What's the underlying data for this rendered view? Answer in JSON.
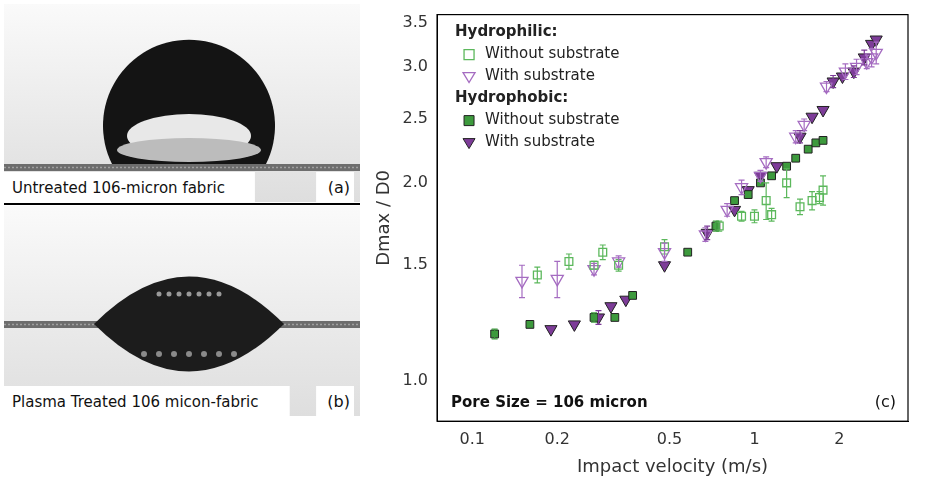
{
  "panels": [
    {
      "label": "(a)",
      "caption": "Untreated 106-micron fabric"
    },
    {
      "label": "(b)",
      "caption": "Plasma Treated 106 micon-fabric"
    }
  ],
  "chart_data": {
    "type": "scatter",
    "panel_label": "(c)",
    "annotations": [
      "Pore Size = 106 micron"
    ],
    "x_label": "Impact velocity (m/s)",
    "y_label": "Dmax / D0",
    "log": true,
    "grid": false,
    "legend": "upper left",
    "xlim": [
      0.075,
      3.5
    ],
    "xticks": [
      0.1,
      0.2,
      0.5,
      1,
      2
    ],
    "ylim": [
      0.87,
      3.6
    ],
    "yticks": [
      {
        "value": 1,
        "label": "1.0"
      },
      1.5,
      {
        "value": 2,
        "label": "2.0"
      },
      2.5,
      {
        "value": 3,
        "label": "3.0"
      },
      3.5
    ],
    "series": [
      {
        "group": "Hydrophilic:",
        "name": "Without substrate",
        "color": "#5cb85c",
        "marker": "open_square",
        "x": [
          0.17,
          0.22,
          0.27,
          0.29,
          0.33,
          0.48,
          0.75,
          0.9,
          1.0,
          1.1,
          1.15,
          1.3,
          1.45,
          1.6,
          1.7,
          1.75
        ],
        "values": [
          1.45,
          1.52,
          1.5,
          1.57,
          1.5,
          1.6,
          1.72,
          1.78,
          1.78,
          1.88,
          1.79,
          2.0,
          1.84,
          1.88,
          1.9,
          1.95
        ],
        "errors": [
          0.04,
          0.04,
          0.02,
          0.04,
          0.03,
          0.04,
          0.03,
          0.03,
          0.04,
          0.12,
          0.04,
          0.1,
          0.05,
          0.06,
          0.04,
          0.1
        ]
      },
      {
        "group": "Hydrophilic:",
        "name": "With substrate",
        "color": "#a56cc1",
        "marker": "open_triangle_down",
        "x": [
          0.15,
          0.2,
          0.27,
          0.33,
          0.48,
          0.67,
          0.8,
          0.9,
          1.05,
          1.1,
          1.4,
          1.5,
          1.8,
          2.1,
          2.3,
          2.5,
          2.6,
          2.7
        ],
        "values": [
          1.42,
          1.43,
          1.48,
          1.52,
          1.57,
          1.67,
          1.82,
          1.97,
          2.05,
          2.15,
          2.35,
          2.45,
          2.8,
          2.95,
          3.0,
          3.05,
          3.1,
          3.15
        ],
        "errors": [
          0.08,
          0.09,
          0.03,
          0.03,
          0.05,
          0.04,
          0.04,
          0.05,
          0.04,
          0.04,
          0.05,
          0.05,
          0.05,
          0.08,
          0.08,
          0.07,
          0.1,
          0.12
        ]
      },
      {
        "group": "Hydrophobic:",
        "name": "Without substrate",
        "color": "#3d9a3d",
        "marker": "square",
        "x": [
          0.12,
          0.16,
          0.27,
          0.32,
          0.37,
          0.58,
          0.73,
          0.85,
          0.95,
          1.05,
          1.15,
          1.3,
          1.4,
          1.55,
          1.65,
          1.75
        ],
        "values": [
          1.18,
          1.22,
          1.25,
          1.25,
          1.35,
          1.57,
          1.72,
          1.88,
          1.92,
          2.0,
          2.05,
          2.12,
          2.18,
          2.25,
          2.3,
          2.32
        ],
        "errors": [
          0.02,
          null,
          0.02,
          null,
          null,
          null,
          0.03,
          null,
          null,
          null,
          null,
          null,
          null,
          null,
          null,
          null
        ]
      },
      {
        "group": "Hydrophobic:",
        "name": "With substrate",
        "color": "#7d3c98",
        "marker": "triangle_down",
        "x": [
          0.19,
          0.23,
          0.28,
          0.31,
          0.35,
          0.48,
          0.68,
          0.85,
          0.95,
          1.05,
          1.2,
          1.45,
          1.6,
          1.75,
          1.9,
          2.05,
          2.25,
          2.45,
          2.6,
          2.7
        ],
        "values": [
          1.2,
          1.22,
          1.25,
          1.3,
          1.33,
          1.5,
          1.68,
          1.82,
          1.95,
          2.05,
          2.12,
          2.35,
          2.52,
          2.58,
          2.85,
          2.9,
          2.95,
          3.1,
          3.25,
          3.3
        ],
        "errors": [
          null,
          null,
          0.03,
          null,
          null,
          null,
          0.04,
          null,
          null,
          null,
          null,
          0.05,
          null,
          null,
          0.06,
          null,
          0.06,
          0.08,
          null,
          null
        ]
      }
    ]
  }
}
